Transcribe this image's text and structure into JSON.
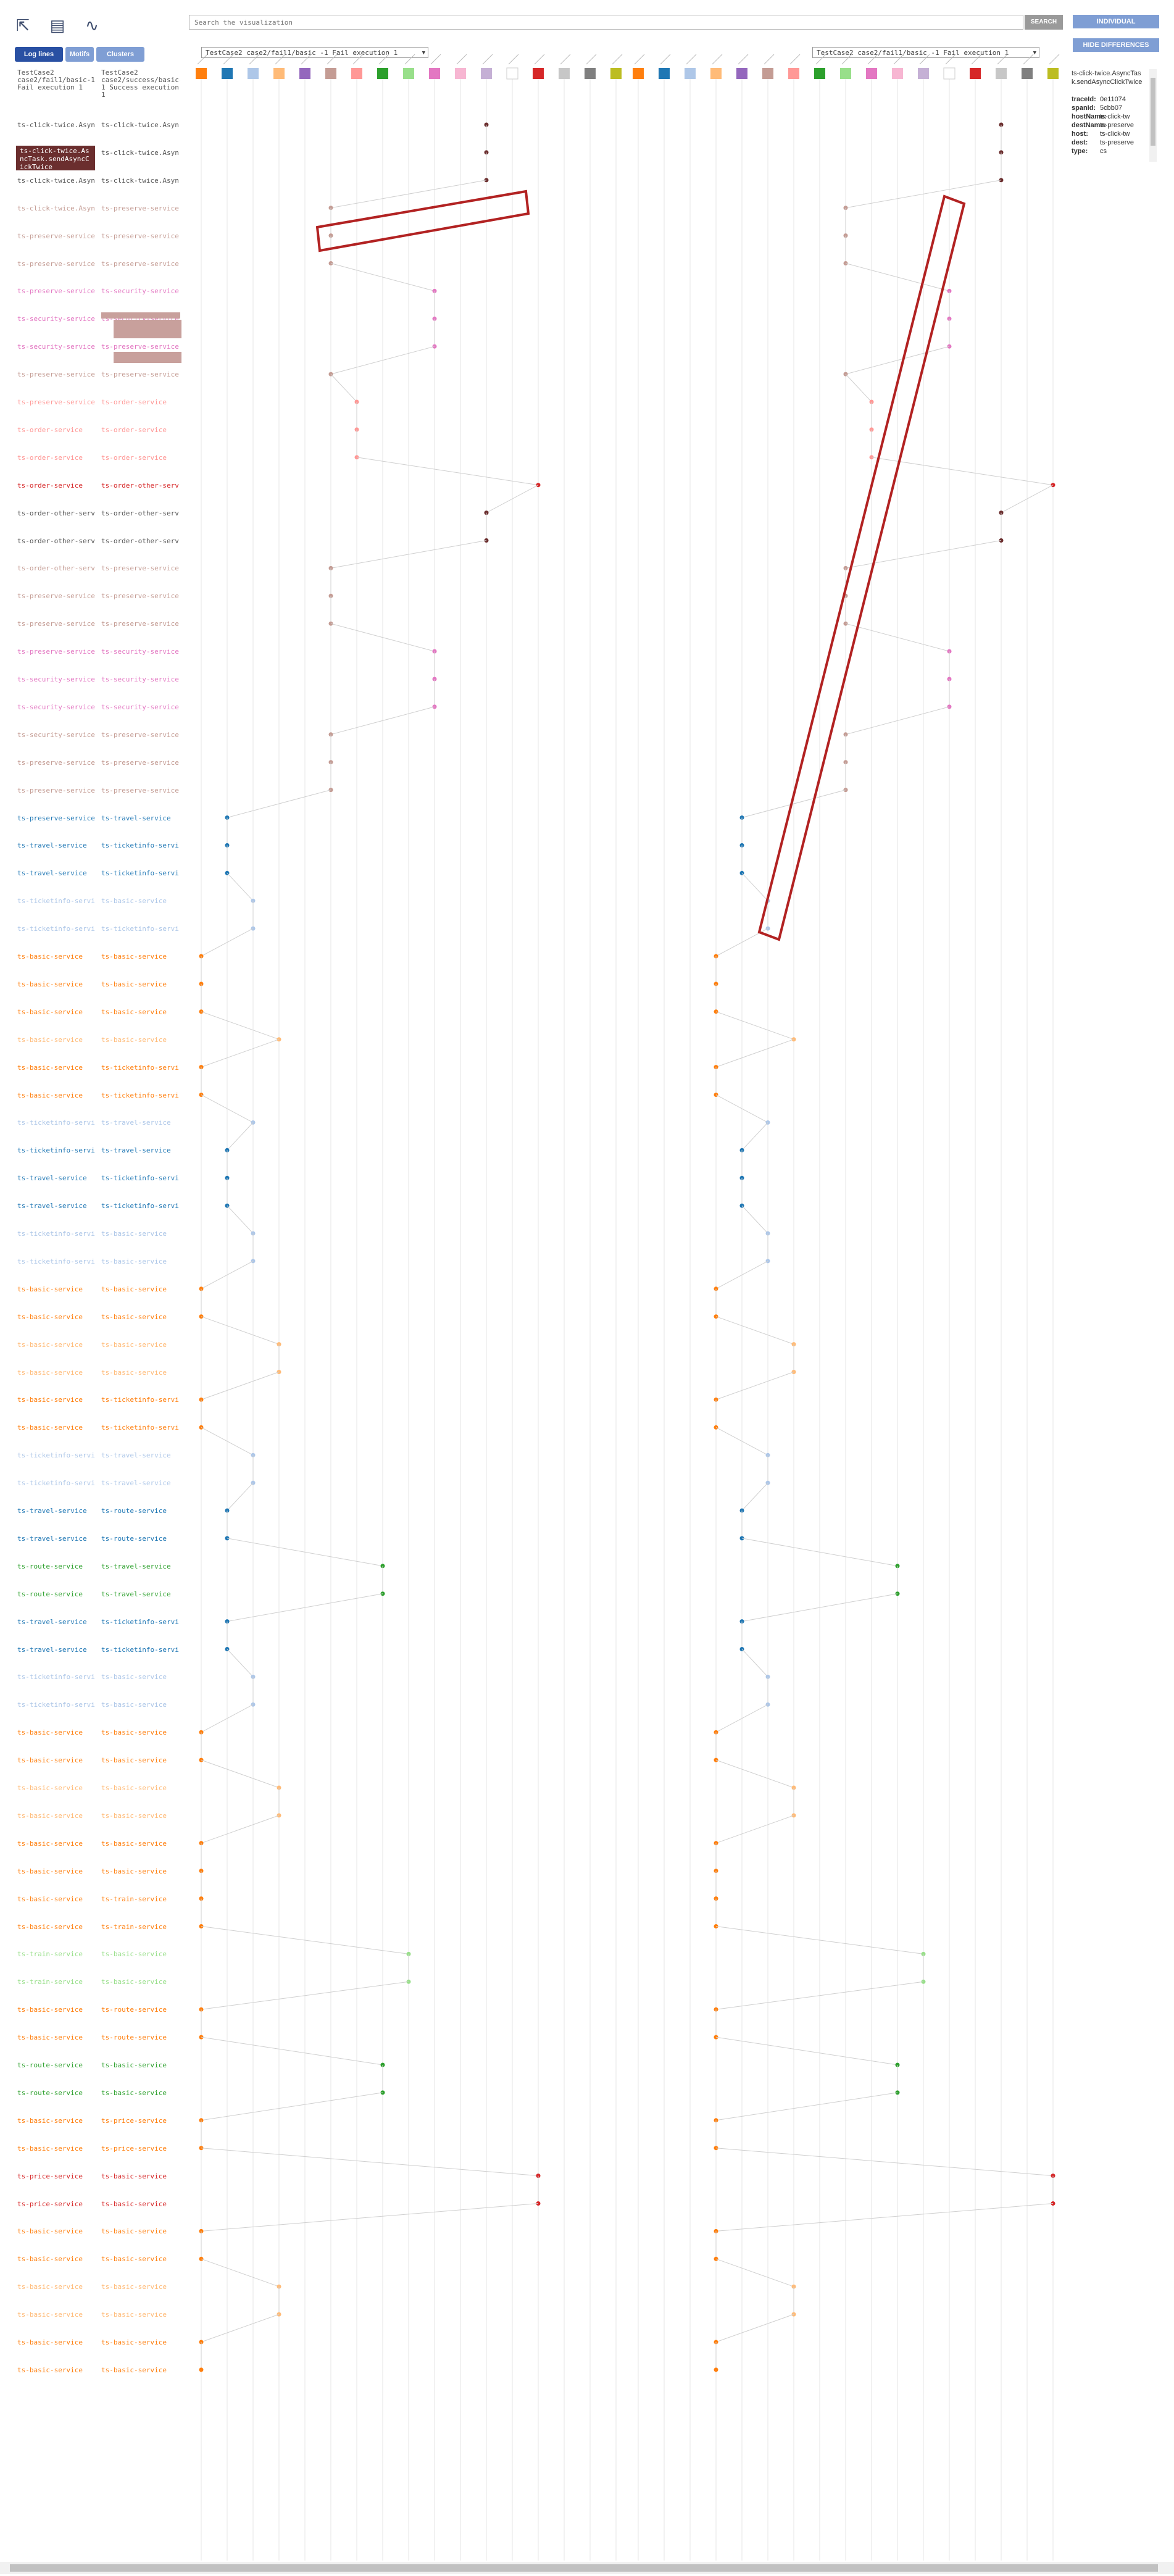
{
  "toolbar": {
    "icons": [
      "pointer-icon",
      "document-icon",
      "graph-icon"
    ],
    "tabs": [
      {
        "label": "Log lines",
        "active": true
      },
      {
        "label": "Motifs",
        "active": false
      },
      {
        "label": "Clusters",
        "active": false
      }
    ],
    "search_placeholder": "Search the visualization",
    "search_button": "SEARCH",
    "individual_button": "INDIVIDUAL",
    "hide_differences_button": "HIDE DIFFERENCES"
  },
  "columns": {
    "left_header": "TestCase2 case2/fail1/basic-1 Fail execution 1",
    "right_header": "TestCase2 case2/success/basic-1 Success execution 1"
  },
  "selectors": {
    "left": "TestCase2 case2/fail1/basic -1 Fail execution 1",
    "right": "TestCase2 case2/fail1/basic -1 Fail execution 1"
  },
  "detail_panel": {
    "title": "ts-click-twice.AsyncTask.sendAsyncClickTwice",
    "fields": [
      {
        "key": "traceId:",
        "value": "0e11074"
      },
      {
        "key": "spanId:",
        "value": "5cbb07"
      },
      {
        "key": "hostName:",
        "value": "ts-click-tw"
      },
      {
        "key": "destName:",
        "value": "ts-preserve"
      },
      {
        "key": "host:",
        "value": "ts-click-tw"
      },
      {
        "key": "dest:",
        "value": "ts-preserve"
      },
      {
        "key": "type:",
        "value": "cs"
      }
    ]
  },
  "highlighted_log": [
    "ts-click-twice.As",
    "ncTask.sendAsyncC",
    "ickTwice"
  ],
  "host_colors": [
    "#ff7f0e",
    "#1f77b4",
    "#aec7e8",
    "#ffbb78",
    "#9467bd",
    "#c49c94",
    "#ff9896",
    "#2ca02c",
    "#98df8a",
    "#e377c2",
    "#f7b6d2",
    "#c5b0d5",
    "#ffffff",
    "#d62728",
    "#c7c7c7",
    "#7f7f7f",
    "#bcbd22"
  ],
  "log_rows": [
    {
      "a": "ts-click-twice.AsyncTask",
      "b": "ts-click-twice.AsyncTask",
      "c": "#555555"
    },
    {
      "a": "ts-click-twice.AsyncTask",
      "b": "ts-click-twice.AsyncTask",
      "c": "#555555"
    },
    {
      "a": "ts-click-twice.AsyncTask",
      "b": "ts-click-twice.AsyncTask",
      "c": "#555555"
    },
    {
      "a": "ts-click-twice.AsyncTask",
      "b": "ts-preserve-service",
      "c": "#c49c94"
    },
    {
      "a": "ts-preserve-service",
      "b": "ts-preserve-service",
      "c": "#c49c94"
    },
    {
      "a": "ts-preserve-service",
      "b": "ts-preserve-service",
      "c": "#c49c94"
    },
    {
      "a": "ts-preserve-service",
      "b": "ts-security-service",
      "c": "#e377c2"
    },
    {
      "a": "ts-security-service",
      "b": "ts-security-service",
      "c": "#e377c2"
    },
    {
      "a": "ts-security-service",
      "b": "ts-preserve-service",
      "c": "#e377c2"
    },
    {
      "a": "ts-preserve-service",
      "b": "ts-preserve-service",
      "c": "#c49c94"
    },
    {
      "a": "ts-preserve-service",
      "b": "ts-order-service",
      "c": "#ff9896"
    },
    {
      "a": "ts-order-service",
      "b": "ts-order-service",
      "c": "#ff9896"
    },
    {
      "a": "ts-order-service",
      "b": "ts-order-service",
      "c": "#ff9896"
    },
    {
      "a": "ts-order-service",
      "b": "ts-order-other-service",
      "c": "#d62728"
    },
    {
      "a": "ts-order-other-service",
      "b": "ts-order-other-service",
      "c": "#555555"
    },
    {
      "a": "ts-order-other-service",
      "b": "ts-order-other-service",
      "c": "#555555"
    },
    {
      "a": "ts-order-other-service",
      "b": "ts-preserve-service",
      "c": "#c49c94"
    },
    {
      "a": "ts-preserve-service",
      "b": "ts-preserve-service",
      "c": "#c49c94"
    },
    {
      "a": "ts-preserve-service",
      "b": "ts-preserve-service",
      "c": "#c49c94"
    },
    {
      "a": "ts-preserve-service",
      "b": "ts-security-service",
      "c": "#e377c2"
    },
    {
      "a": "ts-security-service",
      "b": "ts-security-service",
      "c": "#e377c2"
    },
    {
      "a": "ts-security-service",
      "b": "ts-security-service",
      "c": "#e377c2"
    },
    {
      "a": "ts-security-service",
      "b": "ts-preserve-service",
      "c": "#c49c94"
    },
    {
      "a": "ts-preserve-service",
      "b": "ts-preserve-service",
      "c": "#c49c94"
    },
    {
      "a": "ts-preserve-service",
      "b": "ts-preserve-service",
      "c": "#c49c94"
    },
    {
      "a": "ts-preserve-service",
      "b": "ts-travel-service",
      "c": "#1f77b4"
    },
    {
      "a": "ts-travel-service",
      "b": "ts-ticketinfo-service",
      "c": "#1f77b4"
    },
    {
      "a": "ts-travel-service",
      "b": "ts-ticketinfo-service",
      "c": "#1f77b4"
    },
    {
      "a": "ts-ticketinfo-service",
      "b": "ts-basic-service",
      "c": "#aec7e8"
    },
    {
      "a": "ts-ticketinfo-service",
      "b": "ts-ticketinfo-service",
      "c": "#aec7e8"
    },
    {
      "a": "ts-basic-service",
      "b": "ts-basic-service",
      "c": "#ff7f0e"
    },
    {
      "a": "ts-basic-service",
      "b": "ts-basic-service",
      "c": "#ff7f0e"
    },
    {
      "a": "ts-basic-service",
      "b": "ts-basic-service",
      "c": "#ff7f0e"
    },
    {
      "a": "ts-basic-service",
      "b": "ts-basic-service",
      "c": "#ffbb78"
    },
    {
      "a": "ts-basic-service",
      "b": "ts-ticketinfo-service",
      "c": "#ff7f0e"
    },
    {
      "a": "ts-basic-service",
      "b": "ts-ticketinfo-service",
      "c": "#ff7f0e"
    },
    {
      "a": "ts-ticketinfo-service",
      "b": "ts-travel-service",
      "c": "#aec7e8"
    },
    {
      "a": "ts-ticketinfo-service",
      "b": "ts-travel-service",
      "c": "#1f77b4"
    },
    {
      "a": "ts-travel-service",
      "b": "ts-ticketinfo-service",
      "c": "#1f77b4"
    },
    {
      "a": "ts-travel-service",
      "b": "ts-ticketinfo-service",
      "c": "#1f77b4"
    },
    {
      "a": "ts-ticketinfo-service",
      "b": "ts-basic-service",
      "c": "#aec7e8"
    },
    {
      "a": "ts-ticketinfo-service",
      "b": "ts-basic-service",
      "c": "#aec7e8"
    },
    {
      "a": "ts-basic-service",
      "b": "ts-basic-service",
      "c": "#ff7f0e"
    },
    {
      "a": "ts-basic-service",
      "b": "ts-basic-service",
      "c": "#ff7f0e"
    },
    {
      "a": "ts-basic-service",
      "b": "ts-basic-service",
      "c": "#ffbb78"
    },
    {
      "a": "ts-basic-service",
      "b": "ts-basic-service",
      "c": "#ffbb78"
    },
    {
      "a": "ts-basic-service",
      "b": "ts-ticketinfo-service",
      "c": "#ff7f0e"
    },
    {
      "a": "ts-basic-service",
      "b": "ts-ticketinfo-service",
      "c": "#ff7f0e"
    },
    {
      "a": "ts-ticketinfo-service",
      "b": "ts-travel-service",
      "c": "#aec7e8"
    },
    {
      "a": "ts-ticketinfo-service",
      "b": "ts-travel-service",
      "c": "#aec7e8"
    },
    {
      "a": "ts-travel-service",
      "b": "ts-route-service",
      "c": "#1f77b4"
    },
    {
      "a": "ts-travel-service",
      "b": "ts-route-service",
      "c": "#1f77b4"
    },
    {
      "a": "ts-route-service",
      "b": "ts-travel-service",
      "c": "#2ca02c"
    },
    {
      "a": "ts-route-service",
      "b": "ts-travel-service",
      "c": "#2ca02c"
    },
    {
      "a": "ts-travel-service",
      "b": "ts-ticketinfo-service",
      "c": "#1f77b4"
    },
    {
      "a": "ts-travel-service",
      "b": "ts-ticketinfo-service",
      "c": "#1f77b4"
    },
    {
      "a": "ts-ticketinfo-service",
      "b": "ts-basic-service",
      "c": "#aec7e8"
    },
    {
      "a": "ts-ticketinfo-service",
      "b": "ts-basic-service",
      "c": "#aec7e8"
    },
    {
      "a": "ts-basic-service",
      "b": "ts-basic-service",
      "c": "#ff7f0e"
    },
    {
      "a": "ts-basic-service",
      "b": "ts-basic-service",
      "c": "#ff7f0e"
    },
    {
      "a": "ts-basic-service",
      "b": "ts-basic-service",
      "c": "#ffbb78"
    },
    {
      "a": "ts-basic-service",
      "b": "ts-basic-service",
      "c": "#ffbb78"
    },
    {
      "a": "ts-basic-service",
      "b": "ts-basic-service",
      "c": "#ff7f0e"
    },
    {
      "a": "ts-basic-service",
      "b": "ts-basic-service",
      "c": "#ff7f0e"
    },
    {
      "a": "ts-basic-service",
      "b": "ts-train-service",
      "c": "#ff7f0e"
    },
    {
      "a": "ts-basic-service",
      "b": "ts-train-service",
      "c": "#ff7f0e"
    },
    {
      "a": "ts-train-service",
      "b": "ts-basic-service",
      "c": "#98df8a"
    },
    {
      "a": "ts-train-service",
      "b": "ts-basic-service",
      "c": "#98df8a"
    },
    {
      "a": "ts-basic-service",
      "b": "ts-route-service",
      "c": "#ff7f0e"
    },
    {
      "a": "ts-basic-service",
      "b": "ts-route-service",
      "c": "#ff7f0e"
    },
    {
      "a": "ts-route-service",
      "b": "ts-basic-service",
      "c": "#2ca02c"
    },
    {
      "a": "ts-route-service",
      "b": "ts-basic-service",
      "c": "#2ca02c"
    },
    {
      "a": "ts-basic-service",
      "b": "ts-price-service",
      "c": "#ff7f0e"
    },
    {
      "a": "ts-basic-service",
      "b": "ts-price-service",
      "c": "#ff7f0e"
    },
    {
      "a": "ts-price-service",
      "b": "ts-basic-service",
      "c": "#d62728"
    },
    {
      "a": "ts-price-service",
      "b": "ts-basic-service",
      "c": "#d62728"
    },
    {
      "a": "ts-basic-service",
      "b": "ts-basic-service",
      "c": "#ff7f0e"
    },
    {
      "a": "ts-basic-service",
      "b": "ts-basic-service",
      "c": "#ff7f0e"
    },
    {
      "a": "ts-basic-service",
      "b": "ts-basic-service",
      "c": "#ffbb78"
    },
    {
      "a": "ts-basic-service",
      "b": "ts-basic-service",
      "c": "#ffbb78"
    },
    {
      "a": "ts-basic-service",
      "b": "ts-basic-service",
      "c": "#ff7f0e"
    },
    {
      "a": "ts-basic-service",
      "b": "ts-basic-service",
      "c": "#ff7f0e"
    }
  ]
}
